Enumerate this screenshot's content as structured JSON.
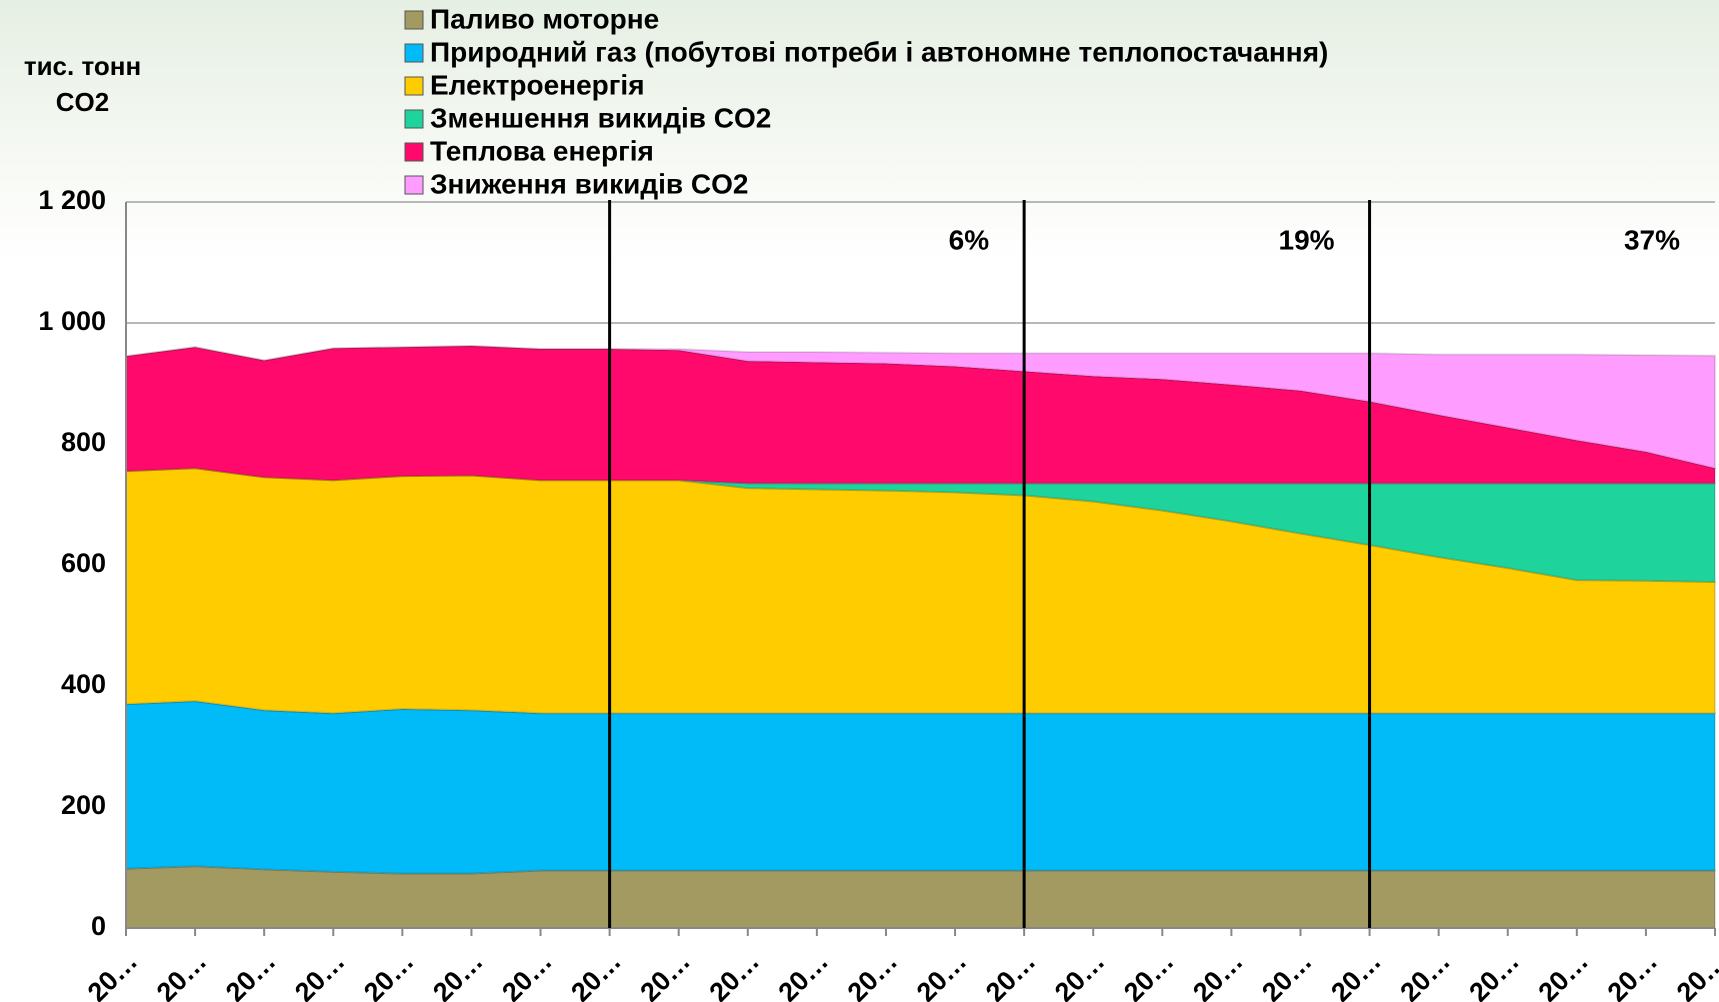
{
  "chart_data": {
    "type": "stacked_area",
    "ylabel": "тис. тонн CO2",
    "categories": [
      "20…",
      "20…",
      "20…",
      "20…",
      "20…",
      "20…",
      "20…",
      "20…",
      "20…",
      "20…",
      "20…",
      "20…",
      "20…",
      "20…",
      "20…",
      "20…",
      "20…",
      "20…",
      "20…",
      "20…",
      "20…",
      "20…",
      "20…",
      "20…"
    ],
    "series": [
      {
        "name": "Паливо моторне",
        "color": "#a39a62",
        "values": [
          98,
          102,
          97,
          93,
          90,
          90,
          95,
          95,
          95,
          95,
          95,
          95,
          95,
          95,
          95,
          95,
          95,
          95,
          95,
          95,
          95,
          95,
          95,
          95
        ]
      },
      {
        "name": "Природний газ (побутові потреби і автономне теплопостачання)",
        "color": "#00bbf7",
        "values": [
          272,
          273,
          263,
          262,
          272,
          270,
          260,
          260,
          260,
          260,
          260,
          260,
          260,
          260,
          260,
          260,
          260,
          260,
          260,
          260,
          260,
          260,
          260,
          260
        ]
      },
      {
        "name": "Електроенергія",
        "color": "#ffcc00",
        "values": [
          385,
          385,
          385,
          385,
          385,
          388,
          385,
          385,
          385,
          372,
          370,
          368,
          365,
          360,
          350,
          335,
          317,
          297,
          278,
          258,
          240,
          220,
          219,
          217
        ]
      },
      {
        "name": "Зменшення викидів CO2",
        "color": "#1fd49c",
        "values": [
          0,
          0,
          0,
          0,
          0,
          0,
          0,
          0,
          0,
          8,
          10,
          12,
          15,
          20,
          30,
          45,
          63,
          83,
          102,
          122,
          140,
          160,
          161,
          163
        ]
      },
      {
        "name": "Теплова енергія",
        "color": "#ff0a6c",
        "values": [
          190,
          200,
          193,
          218,
          213,
          214,
          217,
          217,
          215,
          202,
          200,
          198,
          193,
          185,
          177,
          172,
          163,
          153,
          135,
          113,
          92,
          71,
          52,
          25
        ]
      },
      {
        "name": "Зниження викидів CO2",
        "color": "#ff9cff",
        "values": [
          0,
          0,
          0,
          0,
          0,
          0,
          0,
          0,
          2,
          15,
          17,
          18,
          22,
          30,
          38,
          43,
          52,
          62,
          80,
          100,
          121,
          142,
          160,
          186
        ]
      }
    ],
    "ylim": [
      0,
      1200
    ],
    "yticks": [
      0,
      200,
      400,
      600,
      800,
      {
        "value": 1000,
        "label": "1 000"
      },
      {
        "value": 1200,
        "label": "1 200"
      }
    ],
    "grid": true,
    "vlines": [
      7,
      13,
      18
    ],
    "annotations": [
      "6%",
      "19%",
      "37%"
    ]
  }
}
